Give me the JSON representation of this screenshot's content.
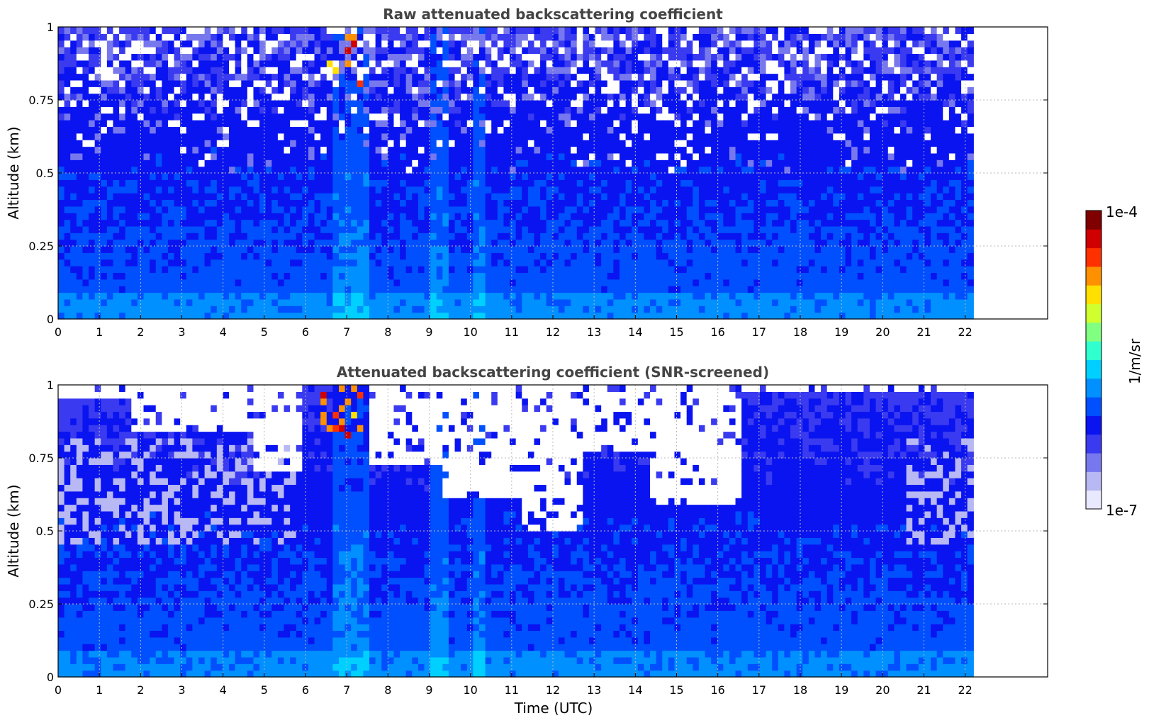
{
  "chart_data": [
    {
      "type": "heatmap",
      "title": "Raw attenuated backscattering coefficient",
      "xlabel": "",
      "ylabel": "Altitude (km)",
      "xlim": [
        0,
        24
      ],
      "ylim": [
        0,
        1
      ],
      "x_data_extent": [
        0,
        22.2
      ],
      "xticks": [
        "0",
        "1",
        "2",
        "3",
        "4",
        "5",
        "6",
        "7",
        "8",
        "9",
        "10",
        "11",
        "12",
        "13",
        "14",
        "15",
        "16",
        "17",
        "18",
        "19",
        "20",
        "21",
        "22"
      ],
      "yticks": [
        "0",
        "0.25",
        "0.5",
        "0.75",
        "1"
      ],
      "grid": true
    },
    {
      "type": "heatmap",
      "title": "Attenuated backscattering coefficient (SNR-screened)",
      "xlabel": "Time (UTC)",
      "ylabel": "Altitude (km)",
      "xlim": [
        0,
        24
      ],
      "ylim": [
        0,
        1
      ],
      "x_data_extent": [
        0,
        22.2
      ],
      "xticks": [
        "0",
        "1",
        "2",
        "3",
        "4",
        "5",
        "6",
        "7",
        "8",
        "9",
        "10",
        "11",
        "12",
        "13",
        "14",
        "15",
        "16",
        "17",
        "18",
        "19",
        "20",
        "21",
        "22"
      ],
      "yticks": [
        "0",
        "0.25",
        "0.5",
        "0.75",
        "1"
      ],
      "grid": true
    }
  ],
  "colorbar": {
    "label": "1/m/sr",
    "max_label": "1e-4",
    "min_label": "1e-7",
    "scale": "log",
    "colors": [
      "#e8e8ff",
      "#b8b8f4",
      "#7878ee",
      "#3a3af0",
      "#0a14f0",
      "#0050ff",
      "#0090ff",
      "#00d0ff",
      "#30ffd0",
      "#80ff80",
      "#d0ff30",
      "#ffe000",
      "#ff9000",
      "#ff3000",
      "#d00000",
      "#800000"
    ]
  }
}
